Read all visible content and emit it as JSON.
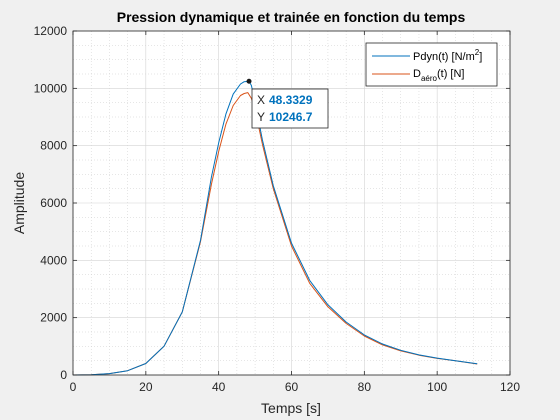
{
  "chart_data": {
    "type": "line",
    "title": "Pression dynamique et trainée en fonction du temps",
    "xlabel": "Temps [s]",
    "ylabel": "Amplitude",
    "xlim": [
      0,
      120
    ],
    "ylim": [
      0,
      12000
    ],
    "xticks": [
      0,
      20,
      40,
      60,
      80,
      100,
      120
    ],
    "yticks": [
      0,
      2000,
      4000,
      6000,
      8000,
      10000,
      12000
    ],
    "grid": true,
    "minor_grid": true,
    "legend_position": "top-right",
    "series": [
      {
        "name_main": "Pdyn(t) [N/m",
        "name_sup": "2",
        "name_tail": "]",
        "color": "#0072bd",
        "x": [
          0,
          5,
          10,
          15,
          20,
          25,
          30,
          35,
          38,
          40,
          42,
          44,
          46,
          47,
          48.3329,
          49,
          50,
          52,
          55,
          60,
          65,
          70,
          75,
          80,
          85,
          90,
          95,
          100,
          105,
          111
        ],
        "y": [
          0,
          10,
          50,
          150,
          400,
          1000,
          2200,
          4700,
          6900,
          8100,
          9100,
          9800,
          10150,
          10230,
          10246.7,
          10100,
          9500,
          8200,
          6600,
          4600,
          3300,
          2450,
          1850,
          1400,
          1080,
          860,
          700,
          590,
          500,
          390
        ]
      },
      {
        "name_main": "D",
        "name_sub": "aéro",
        "name_tail": "(t) [N]",
        "color": "#d95319",
        "x": [
          0,
          5,
          10,
          15,
          20,
          25,
          30,
          35,
          38,
          40,
          42,
          44,
          46,
          47,
          48,
          49,
          50,
          52,
          55,
          60,
          65,
          70,
          75,
          80,
          85,
          90,
          95,
          100,
          105,
          111
        ],
        "y": [
          0,
          10,
          50,
          150,
          400,
          1000,
          2200,
          4650,
          6650,
          7800,
          8750,
          9400,
          9750,
          9820,
          9850,
          9650,
          9250,
          8050,
          6500,
          4500,
          3200,
          2380,
          1800,
          1360,
          1050,
          840,
          690,
          580,
          495,
          385
        ]
      }
    ],
    "datatip": {
      "x_key": "X",
      "x_value": "48.3329",
      "y_key": "Y",
      "y_value": "10246.7",
      "x": 48.3329,
      "y": 10246.7
    }
  }
}
